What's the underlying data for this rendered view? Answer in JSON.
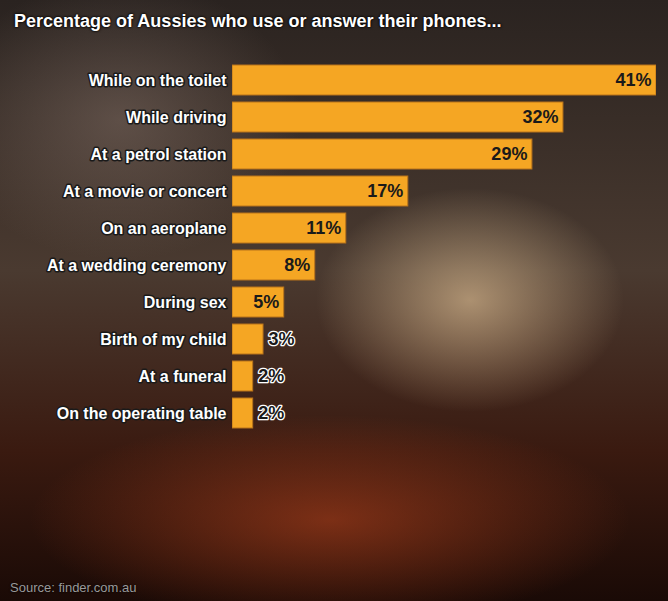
{
  "chart_data": {
    "type": "bar",
    "orientation": "horizontal",
    "title": "Percentage of Aussies who use or answer their phones...",
    "categories": [
      "While on the toilet",
      "While driving",
      "At a petrol station",
      "At a movie or concert",
      "On an aeroplane",
      "At a wedding ceremony",
      "During sex",
      "Birth of my child",
      "At a funeral",
      "On the operating table"
    ],
    "values": [
      41,
      32,
      29,
      17,
      11,
      8,
      5,
      3,
      2,
      2
    ],
    "value_labels": [
      "41%",
      "32%",
      "29%",
      "17%",
      "11%",
      "8%",
      "5%",
      "3%",
      "2%",
      "2%"
    ],
    "color": "#f5a623",
    "xlim": [
      0,
      41
    ],
    "data_labels": true,
    "tick_labels": "y",
    "grid": false,
    "source": "Source: finder.com.au"
  }
}
